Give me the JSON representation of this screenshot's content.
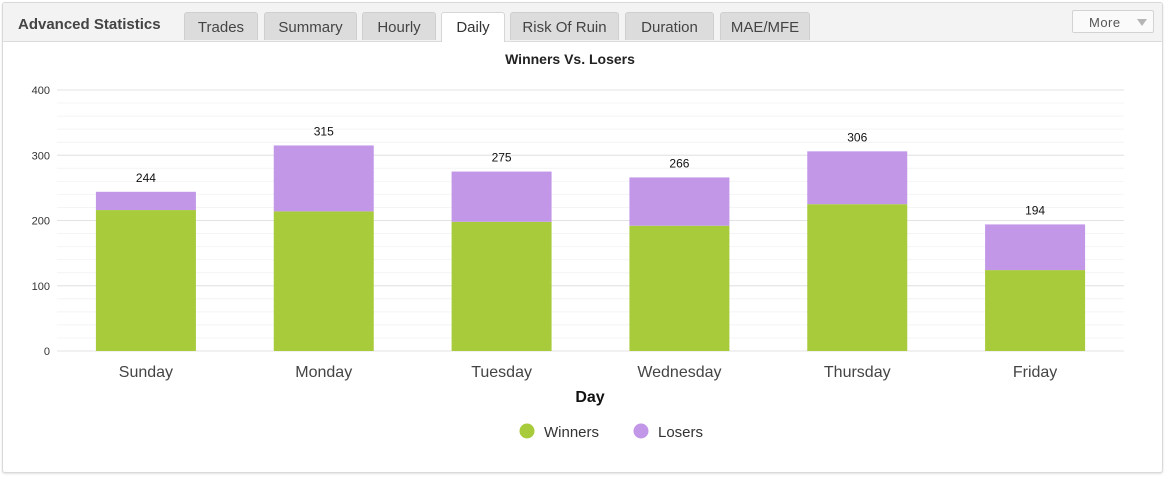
{
  "app": {
    "title": "Advanced Statistics",
    "tabs": [
      {
        "label": "Trades",
        "active": false
      },
      {
        "label": "Summary",
        "active": false
      },
      {
        "label": "Hourly",
        "active": false
      },
      {
        "label": "Daily",
        "active": true
      },
      {
        "label": "Risk Of Ruin",
        "active": false
      },
      {
        "label": "Duration",
        "active": false
      },
      {
        "label": "MAE/MFE",
        "active": false
      }
    ],
    "more_label": "More"
  },
  "chart_data": {
    "type": "bar",
    "stacked": true,
    "title": "Winners Vs. Losers",
    "xlabel": "Day",
    "ylabel": "",
    "ylim": [
      0,
      400
    ],
    "yticks": [
      0,
      100,
      200,
      300,
      400
    ],
    "categories": [
      "Sunday",
      "Monday",
      "Tuesday",
      "Wednesday",
      "Thursday",
      "Friday"
    ],
    "series": [
      {
        "name": "Winners",
        "color": "#a8cb3c",
        "values": [
          216,
          214,
          198,
          192,
          225,
          124
        ]
      },
      {
        "name": "Losers",
        "color": "#c297e8",
        "values": [
          28,
          101,
          77,
          74,
          81,
          70
        ]
      }
    ],
    "totals": [
      244,
      315,
      275,
      266,
      306,
      194
    ],
    "grid": true,
    "legend_position": "bottom"
  }
}
